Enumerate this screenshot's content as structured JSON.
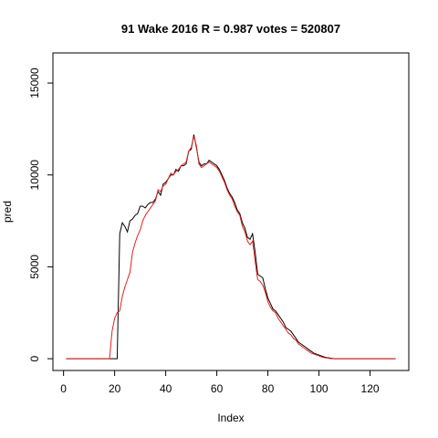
{
  "chart_data": {
    "type": "line",
    "title": "91 Wake 2016 R = 0.987 votes = 520807",
    "xlabel": "Index",
    "ylabel": "pred",
    "x": [
      1,
      2,
      3,
      4,
      5,
      6,
      7,
      8,
      9,
      10,
      11,
      12,
      13,
      14,
      15,
      16,
      17,
      18,
      19,
      20,
      21,
      22,
      23,
      24,
      25,
      26,
      27,
      28,
      29,
      30,
      31,
      32,
      33,
      34,
      35,
      36,
      37,
      38,
      39,
      40,
      41,
      42,
      43,
      44,
      45,
      46,
      47,
      48,
      49,
      50,
      51,
      52,
      53,
      54,
      55,
      56,
      57,
      58,
      59,
      60,
      61,
      62,
      63,
      64,
      65,
      66,
      67,
      68,
      69,
      70,
      71,
      72,
      73,
      74,
      75,
      76,
      77,
      78,
      79,
      80,
      81,
      82,
      83,
      84,
      85,
      86,
      87,
      88,
      89,
      90,
      91,
      92,
      93,
      94,
      95,
      96,
      97,
      98,
      99,
      100,
      101,
      102,
      103,
      104,
      105,
      106,
      107,
      108,
      109,
      110,
      111,
      112,
      113,
      114,
      115,
      116,
      117,
      118,
      119,
      120,
      121,
      122,
      123,
      124,
      125,
      126,
      127,
      128,
      129,
      130
    ],
    "series": [
      {
        "color": "#000000",
        "values": [
          0,
          0,
          0,
          0,
          0,
          0,
          0,
          0,
          0,
          0,
          0,
          0,
          0,
          0,
          0,
          0,
          0,
          0,
          0,
          0,
          0,
          6800,
          7400,
          7200,
          6900,
          7500,
          7600,
          7800,
          7900,
          8300,
          8300,
          8200,
          8400,
          8500,
          8500,
          8700,
          9100,
          8900,
          9500,
          9600,
          9800,
          10000,
          10000,
          10300,
          10200,
          10500,
          10500,
          10600,
          11300,
          11400,
          12200,
          11500,
          10700,
          10500,
          10600,
          10600,
          10800,
          10700,
          10600,
          10500,
          10300,
          10000,
          9700,
          9300,
          9000,
          8800,
          8500,
          8100,
          7900,
          7400,
          7100,
          6600,
          6500,
          6800,
          5800,
          4600,
          4500,
          4400,
          3800,
          3300,
          3000,
          2700,
          2600,
          2400,
          2200,
          2000,
          1700,
          1600,
          1500,
          1300,
          1100,
          900,
          800,
          700,
          600,
          500,
          400,
          300,
          250,
          200,
          150,
          100,
          60,
          40,
          20,
          0,
          0,
          0,
          0,
          0,
          0,
          0,
          0,
          0,
          0,
          0,
          0,
          0,
          0,
          0,
          0,
          0,
          0,
          0,
          0,
          0,
          0,
          0,
          0,
          0
        ]
      },
      {
        "color": "#e8201c",
        "values": [
          0,
          0,
          0,
          0,
          0,
          0,
          0,
          0,
          0,
          0,
          0,
          0,
          0,
          0,
          0,
          0,
          0,
          0,
          1500,
          2200,
          2500,
          2600,
          3400,
          3900,
          4300,
          4700,
          5800,
          6300,
          6700,
          7000,
          7500,
          7800,
          8000,
          8200,
          8400,
          8600,
          9200,
          9100,
          9400,
          9500,
          9800,
          10100,
          10000,
          10200,
          10300,
          10500,
          10600,
          10700,
          11300,
          11500,
          12100,
          11600,
          10600,
          10400,
          10500,
          10600,
          10700,
          10600,
          10500,
          10400,
          10200,
          9900,
          9600,
          9200,
          8900,
          8700,
          8300,
          8000,
          7800,
          7200,
          6900,
          6400,
          6200,
          6400,
          5300,
          4300,
          4200,
          4000,
          3600,
          3100,
          2800,
          2600,
          2500,
          2200,
          2000,
          1800,
          1600,
          1400,
          1300,
          1100,
          1000,
          800,
          700,
          600,
          500,
          400,
          300,
          250,
          200,
          150,
          100,
          60,
          40,
          20,
          0,
          0,
          0,
          0,
          0,
          0,
          0,
          0,
          0,
          0,
          0,
          0,
          0,
          0,
          0,
          0,
          0,
          0,
          0,
          0,
          0,
          0,
          0,
          0,
          0,
          0
        ]
      }
    ],
    "xlim": [
      -4.16,
      135.16
    ],
    "xticks": [
      0,
      20,
      40,
      60,
      80,
      100,
      120
    ],
    "ylim": [
      -640,
      16640
    ],
    "yticks": [
      0,
      5000,
      10000,
      15000
    ]
  }
}
